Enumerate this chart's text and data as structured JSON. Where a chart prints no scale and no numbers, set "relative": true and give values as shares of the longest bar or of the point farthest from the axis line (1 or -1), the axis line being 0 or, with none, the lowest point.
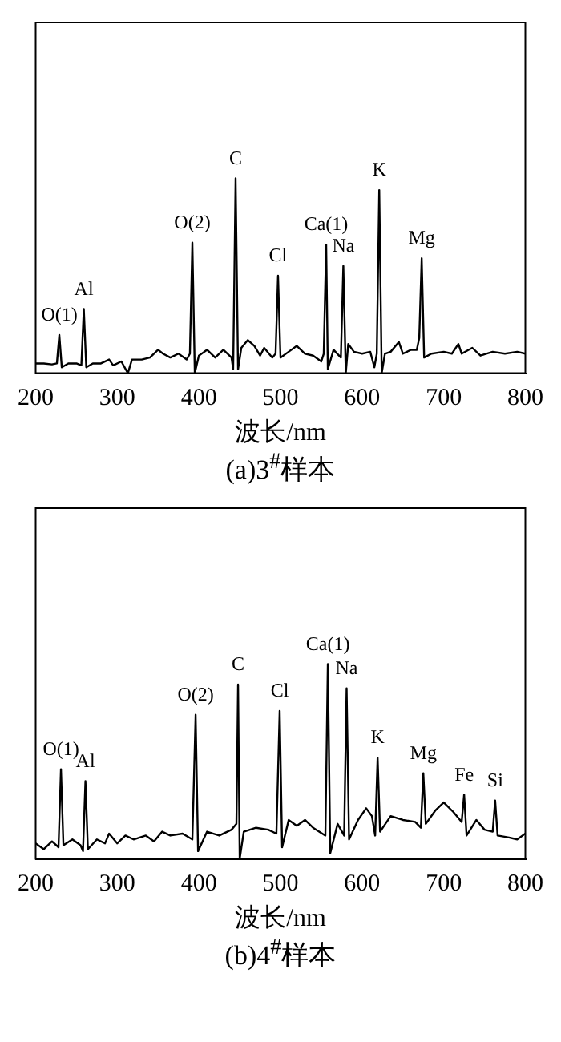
{
  "chart_data": [
    {
      "type": "line",
      "title": "(a)3$^{#}$样本",
      "xlabel": "波长/nm",
      "relative": true,
      "marker": "none",
      "xlim": [
        200,
        800
      ],
      "xticks": [
        200,
        300,
        400,
        500,
        600,
        700,
        800
      ],
      "x": [
        200,
        210,
        220,
        226,
        229,
        232,
        240,
        250,
        256,
        259,
        262,
        270,
        280,
        290,
        295,
        305,
        313,
        318,
        330,
        340,
        350,
        356,
        365,
        375,
        385,
        389,
        392,
        395,
        400,
        410,
        420,
        430,
        440,
        442,
        445,
        448,
        452,
        460,
        468,
        475,
        480,
        490,
        494,
        497,
        500,
        510,
        520,
        530,
        540,
        550,
        553,
        556,
        558,
        565,
        574,
        577,
        580,
        583,
        590,
        600,
        610,
        615,
        618,
        621,
        624,
        628,
        635,
        645,
        650,
        660,
        667,
        670,
        673,
        676,
        685,
        700,
        710,
        718,
        722,
        735,
        745,
        760,
        775,
        790,
        800
      ],
      "series": [
        {
          "color": "#000000",
          "values": [
            0.05,
            0.05,
            0.045,
            0.05,
            0.196,
            0.03,
            0.05,
            0.05,
            0.04,
            0.33,
            0.03,
            0.05,
            0.05,
            0.07,
            0.04,
            0.06,
            0.0,
            0.07,
            0.07,
            0.08,
            0.12,
            0.1,
            0.08,
            0.1,
            0.07,
            0.1,
            0.67,
            0.0,
            0.09,
            0.12,
            0.08,
            0.12,
            0.08,
            0.02,
            1,
            0.02,
            0.13,
            0.17,
            0.14,
            0.09,
            0.13,
            0.08,
            0.1,
            0.5,
            0.08,
            0.11,
            0.14,
            0.1,
            0.09,
            0.06,
            0.1,
            0.66,
            0.02,
            0.12,
            0.08,
            0.55,
            0.0,
            0.15,
            0.11,
            0.1,
            0.11,
            0.03,
            0.1,
            0.94,
            0.0,
            0.1,
            0.11,
            0.16,
            0.1,
            0.12,
            0.12,
            0.18,
            0.59,
            0.08,
            0.1,
            0.11,
            0.1,
            0.15,
            0.1,
            0.13,
            0.09,
            0.11,
            0.1,
            0.11,
            0.1
          ]
        }
      ],
      "annotations": [
        {
          "text": "O(1)",
          "x": 229,
          "y": 0.196
        },
        {
          "text": "Al",
          "x": 259,
          "y": 0.33
        },
        {
          "text": "O(2)",
          "x": 392,
          "y": 0.67
        },
        {
          "text": "C",
          "x": 445,
          "y": 1
        },
        {
          "text": "Cl",
          "x": 497,
          "y": 0.5
        },
        {
          "text": "Ca(1)",
          "x": 556,
          "y": 0.66
        },
        {
          "text": "Na",
          "x": 577,
          "y": 0.55
        },
        {
          "text": "K",
          "x": 621,
          "y": 0.94
        },
        {
          "text": "Mg",
          "x": 673,
          "y": 0.59
        }
      ]
    },
    {
      "type": "line",
      "title": "(b)4$^{#}$样本",
      "xlabel": "波长/nm",
      "relative": true,
      "marker": "none",
      "xlim": [
        200,
        800
      ],
      "xticks": [
        200,
        300,
        400,
        500,
        600,
        700,
        800
      ],
      "x": [
        200,
        210,
        220,
        228,
        231,
        234,
        245,
        255,
        258,
        261,
        264,
        275,
        285,
        290,
        300,
        310,
        320,
        335,
        345,
        355,
        365,
        380,
        392,
        396,
        399,
        410,
        425,
        440,
        446,
        448,
        450,
        455,
        470,
        485,
        495,
        499,
        502,
        510,
        520,
        530,
        540,
        555,
        558,
        561,
        570,
        578,
        581,
        584,
        595,
        605,
        612,
        616,
        619,
        622,
        635,
        650,
        665,
        672,
        675,
        678,
        690,
        700,
        712,
        722,
        725,
        728,
        740,
        750,
        760,
        763,
        766,
        780,
        790,
        800
      ],
      "series": [
        {
          "color": "#000000",
          "values": [
            0.08,
            0.05,
            0.09,
            0.06,
            0.46,
            0.07,
            0.1,
            0.07,
            0.04,
            0.4,
            0.05,
            0.1,
            0.08,
            0.13,
            0.08,
            0.12,
            0.1,
            0.12,
            0.09,
            0.14,
            0.12,
            0.13,
            0.1,
            0.74,
            0.04,
            0.14,
            0.12,
            0.15,
            0.18,
            0.895,
            0.0,
            0.14,
            0.16,
            0.15,
            0.13,
            0.76,
            0.06,
            0.2,
            0.17,
            0.2,
            0.16,
            0.12,
            1,
            0.03,
            0.18,
            0.12,
            0.876,
            0.1,
            0.2,
            0.26,
            0.22,
            0.12,
            0.52,
            0.14,
            0.22,
            0.2,
            0.19,
            0.16,
            0.44,
            0.18,
            0.25,
            0.29,
            0.24,
            0.19,
            0.33,
            0.12,
            0.2,
            0.15,
            0.14,
            0.3,
            0.12,
            0.11,
            0.1,
            0.13
          ]
        }
      ],
      "annotations": [
        {
          "text": "O(1)",
          "x": 231,
          "y": 0.46
        },
        {
          "text": "Al",
          "x": 261,
          "y": 0.4
        },
        {
          "text": "O(2)",
          "x": 396,
          "y": 0.74
        },
        {
          "text": "C",
          "x": 448,
          "y": 0.895
        },
        {
          "text": "Cl",
          "x": 499,
          "y": 0.76
        },
        {
          "text": "Ca(1)",
          "x": 558,
          "y": 1
        },
        {
          "text": "Na",
          "x": 581,
          "y": 0.876
        },
        {
          "text": "K",
          "x": 619,
          "y": 0.52
        },
        {
          "text": "Mg",
          "x": 675,
          "y": 0.44
        },
        {
          "text": "Fe",
          "x": 725,
          "y": 0.33
        },
        {
          "text": "Si",
          "x": 763,
          "y": 0.3
        }
      ]
    }
  ]
}
